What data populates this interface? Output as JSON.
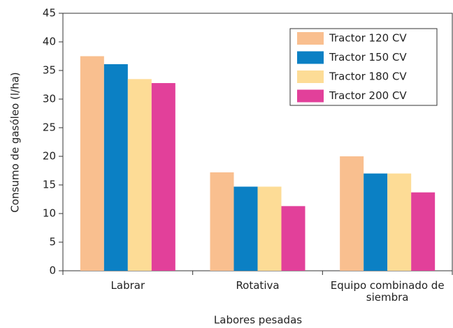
{
  "chart_data": {
    "type": "bar",
    "x_label": "Labores pesadas",
    "y_label": "Consumo de gasóleo (l/ha)",
    "categories": [
      "Labrar",
      "Rotativa",
      "Equipo combinado de siembra"
    ],
    "series": [
      {
        "name": "Tractor 120 CV",
        "color": "#f9bf8f",
        "values": [
          37.5,
          17.2,
          20.0
        ]
      },
      {
        "name": "Tractor 150 CV",
        "color": "#0b80c4",
        "values": [
          36.1,
          14.7,
          17.0
        ]
      },
      {
        "name": "Tractor 180 CV",
        "color": "#fddc96",
        "values": [
          33.5,
          14.7,
          17.0
        ]
      },
      {
        "name": "Tractor 200 CV",
        "color": "#e2409a",
        "values": [
          32.8,
          11.3,
          13.7
        ]
      }
    ],
    "ylim": [
      0,
      45
    ],
    "yticks": [
      0,
      5,
      10,
      15,
      20,
      25,
      30,
      35,
      40,
      45
    ],
    "legend": "upper right"
  }
}
